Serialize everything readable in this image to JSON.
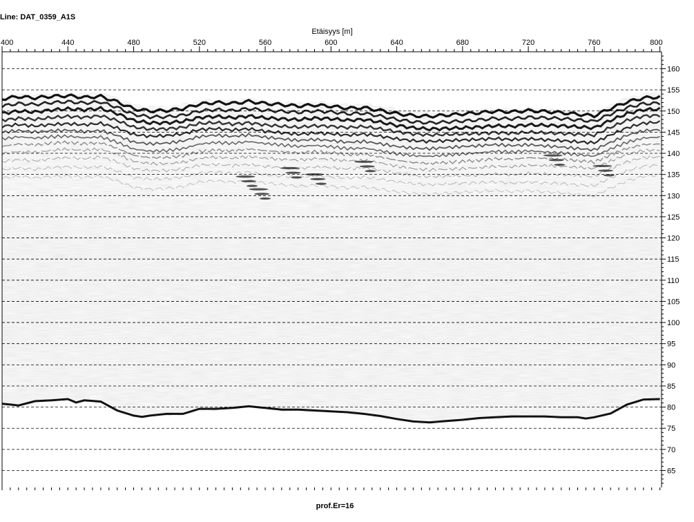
{
  "line_title": "Line: DAT_0359_A1S",
  "footer_label": "prof.Er=16",
  "chart_data": {
    "type": "heatmap",
    "title": "Line: DAT_0359_A1S",
    "xlabel": "Etäisyys [m]",
    "ylabel": "",
    "xlim": [
      400,
      801
    ],
    "ylim": [
      61,
      164
    ],
    "x_ticks": [
      400,
      440,
      480,
      520,
      560,
      600,
      640,
      680,
      720,
      760,
      800
    ],
    "y_ticks": [
      160,
      155,
      150,
      145,
      140,
      135,
      130,
      125,
      120,
      115,
      110,
      105,
      100,
      95,
      90,
      85,
      80,
      75,
      70,
      65
    ],
    "grid": true,
    "grid_style": "dashed horizontal",
    "colormap": "grayscale",
    "surface_profile": {
      "x": [
        400,
        410,
        420,
        430,
        440,
        450,
        460,
        470,
        480,
        490,
        500,
        510,
        520,
        530,
        540,
        550,
        560,
        570,
        580,
        590,
        600,
        610,
        620,
        630,
        640,
        650,
        660,
        670,
        680,
        690,
        700,
        710,
        720,
        730,
        740,
        750,
        760,
        770,
        780,
        790,
        800
      ],
      "y": [
        153,
        153.5,
        153.2,
        153.6,
        153.8,
        153.5,
        153.8,
        152.6,
        151.0,
        150.5,
        150.6,
        151.0,
        152.0,
        152.3,
        152.0,
        152.4,
        151.9,
        151.6,
        151.3,
        151.6,
        151.4,
        151.0,
        151.2,
        150.6,
        149.9,
        149.4,
        149.2,
        149.4,
        149.6,
        149.8,
        150.1,
        149.9,
        150.2,
        150.0,
        149.8,
        149.5,
        149.2,
        151.0,
        152.6,
        153.6,
        153.8
      ]
    },
    "bottom_reflector": {
      "x": [
        400,
        405,
        410,
        420,
        430,
        440,
        445,
        450,
        460,
        470,
        480,
        485,
        490,
        500,
        510,
        520,
        530,
        540,
        550,
        560,
        570,
        580,
        590,
        600,
        610,
        620,
        630,
        640,
        650,
        660,
        670,
        680,
        690,
        700,
        710,
        720,
        730,
        740,
        750,
        755,
        760,
        770,
        780,
        790,
        800
      ],
      "y": [
        80.8,
        80.6,
        80.4,
        81.4,
        81.6,
        81.9,
        81.1,
        81.6,
        81.3,
        79.2,
        78.0,
        77.7,
        78.0,
        78.4,
        78.4,
        79.6,
        79.6,
        79.8,
        80.2,
        79.8,
        79.4,
        79.4,
        79.2,
        79.0,
        78.8,
        78.4,
        77.9,
        77.2,
        76.6,
        76.4,
        76.7,
        77.0,
        77.4,
        77.6,
        77.8,
        77.8,
        77.8,
        77.6,
        77.6,
        77.3,
        77.6,
        78.5,
        80.6,
        81.8,
        81.9
      ]
    }
  }
}
